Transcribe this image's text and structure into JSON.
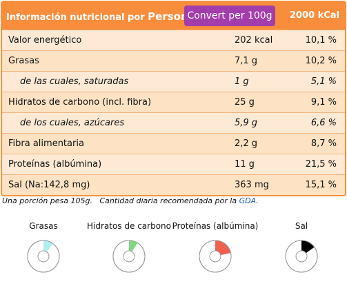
{
  "header": {
    "title": "Información nutricional por",
    "portion": "Person",
    "button": "Convert per 100g",
    "reference": "2000 kCal"
  },
  "table": {
    "rows": [
      {
        "label": "Valor energético",
        "amount": "202 kcal",
        "percent": "10,1 %",
        "sub": false
      },
      {
        "label": "Grasas",
        "amount": "7,1 g",
        "percent": "10,2 %",
        "sub": false
      },
      {
        "label": "de las cuales, saturadas",
        "amount": "1 g",
        "percent": "5,1 %",
        "sub": true
      },
      {
        "label": "Hidratos de carbono (incl. fibra)",
        "amount": "25 g",
        "percent": "9,1 %",
        "sub": false
      },
      {
        "label": "de los cuales, azúcares",
        "amount": "5,9 g",
        "percent": "6,6 %",
        "sub": true
      },
      {
        "label": "Fibra alimentaria",
        "amount": "2,2 g",
        "percent": "8,7 %",
        "sub": false
      },
      {
        "label": "Proteínas (albúmina)",
        "amount": "11 g",
        "percent": "21,5 %",
        "sub": false
      },
      {
        "label": "Sal (Na:142,8 mg)",
        "amount": "363 mg",
        "percent": "15,1 %",
        "sub": false
      }
    ]
  },
  "footer": {
    "portion_note": "Una porción pesa 105g.",
    "gda_note": "Cantidad diaria recomendada por la",
    "link": "GDA",
    "end": "."
  },
  "gauges": [
    {
      "label": "Grasas",
      "value": 10.2,
      "color": "#b3ecec"
    },
    {
      "label": "Hidratos de carbono",
      "value": 9.1,
      "color": "#7fd87f"
    },
    {
      "label": "Proteínas (albúmina)",
      "value": 21.5,
      "color": "#f2604e"
    },
    {
      "label": "Sal",
      "value": 15.1,
      "color": "#000000"
    }
  ]
}
